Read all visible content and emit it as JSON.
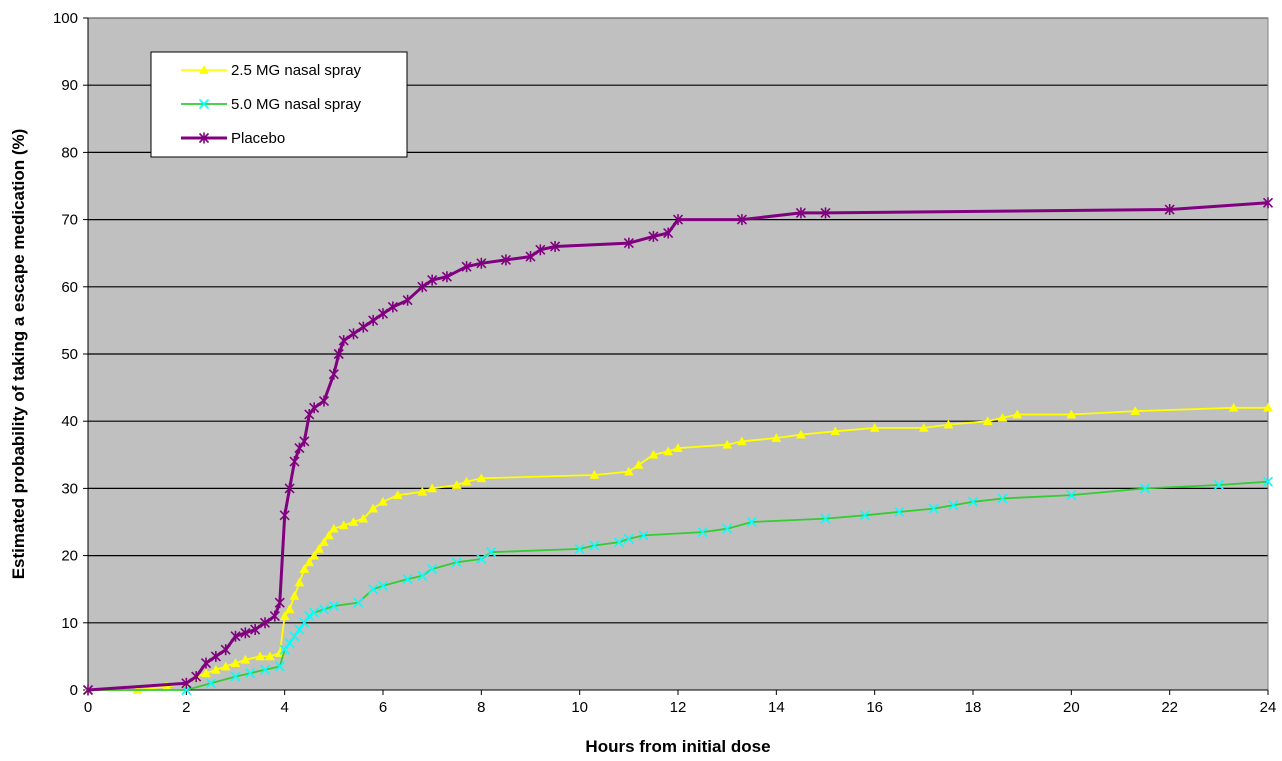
{
  "chart_data": {
    "type": "line",
    "title": "",
    "xlabel": "Hours from initial dose",
    "ylabel": "Estimated probability of taking a escape medication (%)",
    "xlim": [
      0,
      24
    ],
    "ylim": [
      0,
      100
    ],
    "x_ticks": [
      "0",
      "2",
      "4",
      "6",
      "8",
      "10",
      "12",
      "14",
      "16",
      "18",
      "20",
      "22",
      "24"
    ],
    "y_ticks": [
      "0",
      "10",
      "20",
      "30",
      "40",
      "50",
      "60",
      "70",
      "80",
      "90",
      "100"
    ],
    "grid": "horizontal",
    "background_color": "#c0c0c0",
    "legend_position": "top-left",
    "series": [
      {
        "name": "2.5 MG nasal spray",
        "color": "#ffff00",
        "marker": "triangle",
        "points": [
          [
            0,
            0
          ],
          [
            1,
            0
          ],
          [
            1.6,
            0.5
          ],
          [
            2,
            1
          ],
          [
            2.2,
            2
          ],
          [
            2.4,
            2.5
          ],
          [
            2.6,
            3
          ],
          [
            2.8,
            3.5
          ],
          [
            3,
            4
          ],
          [
            3.2,
            4.5
          ],
          [
            3.5,
            5
          ],
          [
            3.7,
            5
          ],
          [
            3.9,
            5.5
          ],
          [
            4,
            11
          ],
          [
            4.1,
            12
          ],
          [
            4.2,
            14
          ],
          [
            4.3,
            16
          ],
          [
            4.4,
            18
          ],
          [
            4.5,
            19
          ],
          [
            4.6,
            20
          ],
          [
            4.7,
            21
          ],
          [
            4.8,
            22
          ],
          [
            4.9,
            23
          ],
          [
            5,
            24
          ],
          [
            5.2,
            24.5
          ],
          [
            5.4,
            25
          ],
          [
            5.6,
            25.5
          ],
          [
            5.8,
            27
          ],
          [
            6,
            28
          ],
          [
            6.3,
            29
          ],
          [
            6.8,
            29.5
          ],
          [
            7,
            30
          ],
          [
            7.5,
            30.5
          ],
          [
            7.7,
            31
          ],
          [
            8,
            31.5
          ],
          [
            10.3,
            32
          ],
          [
            11,
            32.5
          ],
          [
            11.2,
            33.5
          ],
          [
            11.5,
            35
          ],
          [
            11.8,
            35.5
          ],
          [
            12,
            36
          ],
          [
            13,
            36.5
          ],
          [
            13.3,
            37
          ],
          [
            14,
            37.5
          ],
          [
            14.5,
            38
          ],
          [
            15.2,
            38.5
          ],
          [
            16,
            39
          ],
          [
            17,
            39
          ],
          [
            17.5,
            39.5
          ],
          [
            18.3,
            40
          ],
          [
            18.6,
            40.5
          ],
          [
            18.9,
            41
          ],
          [
            20,
            41
          ],
          [
            21.3,
            41.5
          ],
          [
            23.3,
            42
          ],
          [
            24,
            42
          ]
        ]
      },
      {
        "name": "5.0 MG nasal spray",
        "color": "#00ffff",
        "line_color": "#33cc33",
        "marker": "x",
        "points": [
          [
            0,
            0
          ],
          [
            2,
            0
          ],
          [
            2.5,
            1
          ],
          [
            3,
            2
          ],
          [
            3.3,
            2.5
          ],
          [
            3.6,
            3
          ],
          [
            3.9,
            3.5
          ],
          [
            4,
            6
          ],
          [
            4.1,
            7
          ],
          [
            4.2,
            8
          ],
          [
            4.3,
            9
          ],
          [
            4.4,
            10
          ],
          [
            4.5,
            11
          ],
          [
            4.6,
            11.5
          ],
          [
            4.8,
            12
          ],
          [
            5,
            12.5
          ],
          [
            5.5,
            13
          ],
          [
            5.8,
            15
          ],
          [
            6,
            15.5
          ],
          [
            6.5,
            16.5
          ],
          [
            6.8,
            17
          ],
          [
            7,
            18
          ],
          [
            7.5,
            19
          ],
          [
            8,
            19.5
          ],
          [
            8.2,
            20.5
          ],
          [
            10,
            21
          ],
          [
            10.3,
            21.5
          ],
          [
            10.8,
            22
          ],
          [
            11,
            22.5
          ],
          [
            11.3,
            23
          ],
          [
            12.5,
            23.5
          ],
          [
            13,
            24
          ],
          [
            13.5,
            25
          ],
          [
            15,
            25.5
          ],
          [
            15.8,
            26
          ],
          [
            16.5,
            26.5
          ],
          [
            17.2,
            27
          ],
          [
            17.6,
            27.5
          ],
          [
            18,
            28
          ],
          [
            18.6,
            28.5
          ],
          [
            20,
            29
          ],
          [
            21.5,
            30
          ],
          [
            23,
            30.5
          ],
          [
            24,
            31
          ]
        ]
      },
      {
        "name": "Placebo",
        "color": "#800080",
        "marker": "star",
        "points": [
          [
            0,
            0
          ],
          [
            2,
            1
          ],
          [
            2.2,
            2
          ],
          [
            2.4,
            4
          ],
          [
            2.6,
            5
          ],
          [
            2.8,
            6
          ],
          [
            3,
            8
          ],
          [
            3.2,
            8.5
          ],
          [
            3.4,
            9
          ],
          [
            3.6,
            10
          ],
          [
            3.8,
            11
          ],
          [
            3.9,
            13
          ],
          [
            4,
            26
          ],
          [
            4.1,
            30
          ],
          [
            4.2,
            34
          ],
          [
            4.3,
            36
          ],
          [
            4.4,
            37
          ],
          [
            4.5,
            41
          ],
          [
            4.6,
            42
          ],
          [
            4.8,
            43
          ],
          [
            5,
            47
          ],
          [
            5.1,
            50
          ],
          [
            5.2,
            52
          ],
          [
            5.4,
            53
          ],
          [
            5.6,
            54
          ],
          [
            5.8,
            55
          ],
          [
            6,
            56
          ],
          [
            6.2,
            57
          ],
          [
            6.5,
            58
          ],
          [
            6.8,
            60
          ],
          [
            7,
            61
          ],
          [
            7.3,
            61.5
          ],
          [
            7.7,
            63
          ],
          [
            8,
            63.5
          ],
          [
            8.5,
            64
          ],
          [
            9,
            64.5
          ],
          [
            9.2,
            65.5
          ],
          [
            9.5,
            66
          ],
          [
            11,
            66.5
          ],
          [
            11.5,
            67.5
          ],
          [
            11.8,
            68
          ],
          [
            12,
            70
          ],
          [
            13.3,
            70
          ],
          [
            14.5,
            71
          ],
          [
            15,
            71
          ],
          [
            22,
            71.5
          ],
          [
            24,
            72.5
          ]
        ]
      }
    ]
  }
}
